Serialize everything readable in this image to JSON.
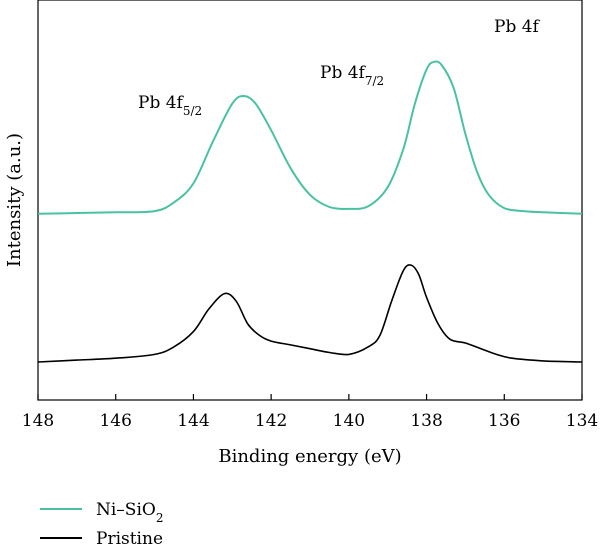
{
  "chart_data": {
    "type": "line",
    "title": "",
    "xlabel": "Binding energy (eV)",
    "ylabel": "Intensity (a.u.)",
    "xlim": [
      148,
      134
    ],
    "x_reversed": true,
    "x_ticks": [
      148,
      146,
      144,
      142,
      140,
      138,
      136,
      134
    ],
    "y_ticks_shown": false,
    "ylim": [
      0,
      1
    ],
    "grid": false,
    "legend_position": "bottom-left",
    "annotations": [
      {
        "id": "pb4f",
        "text": "Pb 4f",
        "x": 137.3,
        "y": 0.98
      },
      {
        "id": "pb4f72",
        "text": "Pb 4f",
        "sub": "7/2",
        "x": 139.8,
        "y": 0.89
      },
      {
        "id": "pb4f52",
        "text": "Pb 4f",
        "sub": "5/2",
        "x": 144.3,
        "y": 0.8
      }
    ],
    "series": [
      {
        "name": "Ni–SiO",
        "name_sub": "2",
        "color": "#4ac2a2",
        "x": [
          148,
          147,
          146,
          145,
          144.5,
          144,
          143.5,
          143,
          142.7,
          142.4,
          142,
          141.5,
          141,
          140.5,
          140,
          139.5,
          139,
          138.6,
          138.3,
          138,
          137.8,
          137.6,
          137.3,
          137,
          136.7,
          136.4,
          136,
          135.5,
          135,
          134
        ],
        "y": [
          0.49,
          0.492,
          0.494,
          0.497,
          0.52,
          0.57,
          0.68,
          0.78,
          0.8,
          0.78,
          0.71,
          0.61,
          0.54,
          0.508,
          0.503,
          0.51,
          0.56,
          0.66,
          0.78,
          0.87,
          0.89,
          0.88,
          0.82,
          0.7,
          0.6,
          0.54,
          0.505,
          0.497,
          0.494,
          0.49
        ],
        "values": [
          0.49,
          0.492,
          0.494,
          0.497,
          0.52,
          0.57,
          0.68,
          0.78,
          0.8,
          0.78,
          0.71,
          0.61,
          0.54,
          0.508,
          0.503,
          0.51,
          0.56,
          0.66,
          0.78,
          0.87,
          0.89,
          0.88,
          0.82,
          0.7,
          0.6,
          0.54,
          0.505,
          0.497,
          0.494,
          0.49
        ]
      },
      {
        "name": "Pristine",
        "name_sub": "",
        "color": "#000000",
        "x": [
          148,
          147,
          146,
          145,
          144.5,
          144,
          143.6,
          143.2,
          142.9,
          142.6,
          142.3,
          142,
          141.5,
          141,
          140.5,
          140,
          139.5,
          139.2,
          138.9,
          138.6,
          138.4,
          138.2,
          138,
          137.7,
          137.4,
          137,
          136.6,
          136.2,
          135.8,
          135,
          134
        ],
        "y": [
          0.1,
          0.105,
          0.11,
          0.12,
          0.14,
          0.18,
          0.24,
          0.28,
          0.26,
          0.2,
          0.17,
          0.155,
          0.145,
          0.135,
          0.125,
          0.12,
          0.14,
          0.17,
          0.26,
          0.34,
          0.355,
          0.33,
          0.27,
          0.2,
          0.16,
          0.15,
          0.135,
          0.12,
          0.11,
          0.103,
          0.1
        ],
        "values": [
          0.1,
          0.105,
          0.11,
          0.12,
          0.14,
          0.18,
          0.24,
          0.28,
          0.26,
          0.2,
          0.17,
          0.155,
          0.145,
          0.135,
          0.125,
          0.12,
          0.14,
          0.17,
          0.26,
          0.34,
          0.355,
          0.33,
          0.27,
          0.2,
          0.16,
          0.15,
          0.135,
          0.12,
          0.11,
          0.103,
          0.1
        ]
      }
    ]
  }
}
